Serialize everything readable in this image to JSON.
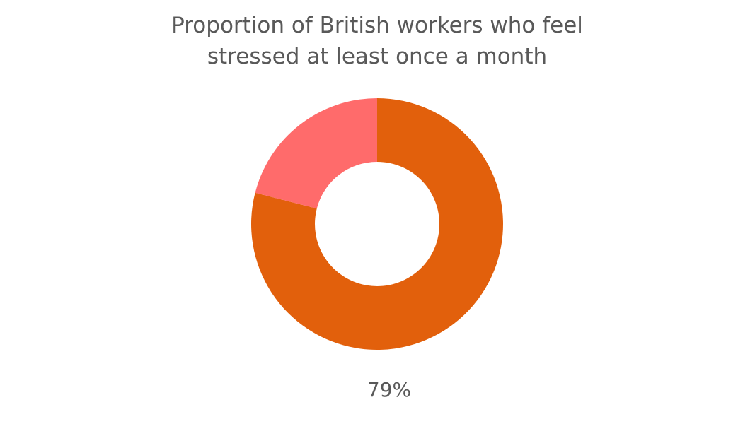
{
  "chart_data": {
    "type": "donut",
    "title": "Proportion of British workers who feel stressed at least once a month",
    "values": [
      79,
      21
    ],
    "value_labels": [
      "79%",
      null
    ],
    "colors": [
      "#e2600c",
      "#ff6b6b"
    ]
  }
}
